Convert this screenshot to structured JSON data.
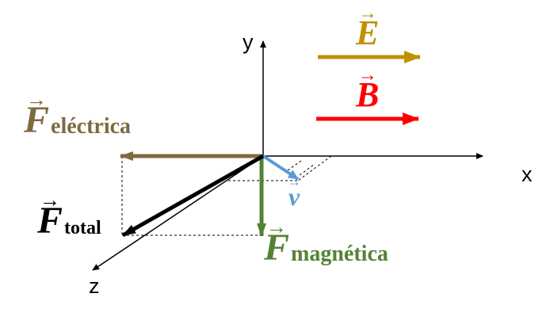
{
  "axes": {
    "x_label": "x",
    "y_label": "y",
    "z_label": "z"
  },
  "vectors": {
    "E": {
      "symbol": "E",
      "color": "#bf9000"
    },
    "B": {
      "symbol": "B",
      "color": "#ff0000"
    },
    "v": {
      "symbol": "v",
      "color": "#5b9bd5"
    },
    "F_electrica": {
      "symbol": "F",
      "subscript": "eléctrica",
      "color": "#7f6a3f"
    },
    "F_magnetica": {
      "symbol": "F",
      "subscript": "magnética",
      "color": "#548235"
    },
    "F_total": {
      "symbol": "F",
      "subscript": "total",
      "color": "#000000"
    }
  },
  "colors": {
    "axes": "#000000",
    "construction_lines": "#000000"
  }
}
